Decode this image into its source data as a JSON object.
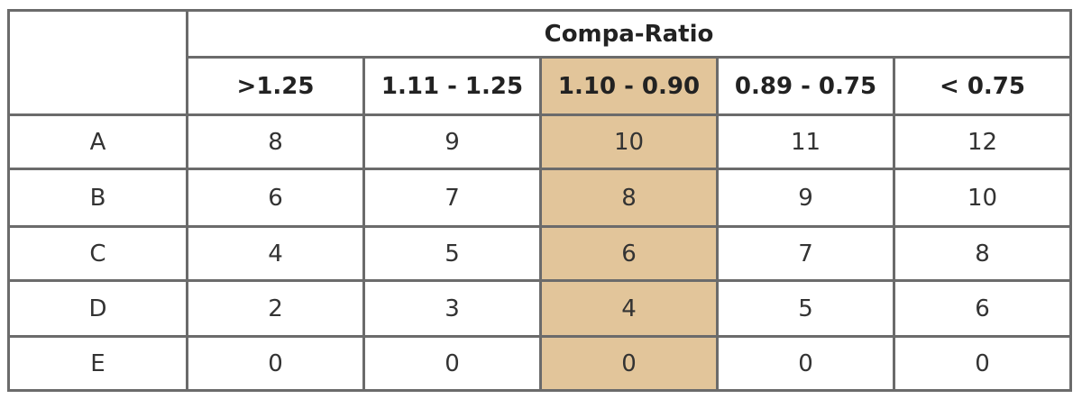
{
  "table": {
    "group_header": "Compa-Ratio",
    "columns": [
      ">1.25",
      "1.11 - 1.25",
      "1.10 - 0.90",
      "0.89 - 0.75",
      "< 0.75"
    ],
    "highlight_column_color": "#e2c59a",
    "rows": [
      {
        "label": "A",
        "values": [
          "8",
          "9",
          "10",
          "11",
          "12"
        ]
      },
      {
        "label": "B",
        "values": [
          "6",
          "7",
          "8",
          "9",
          "10"
        ]
      },
      {
        "label": "C",
        "values": [
          "4",
          "5",
          "6",
          "7",
          "8"
        ]
      },
      {
        "label": "D",
        "values": [
          "2",
          "3",
          "4",
          "5",
          "6"
        ]
      },
      {
        "label": "E",
        "values": [
          "0",
          "0",
          "0",
          "0",
          "0"
        ]
      }
    ]
  }
}
